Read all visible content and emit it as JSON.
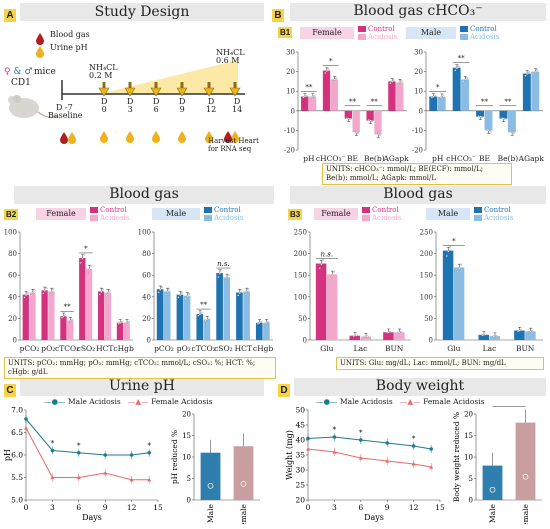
{
  "colors": {
    "female_control": "#d4317e",
    "female_acidosis": "#f3a7cc",
    "male_control": "#1f73b3",
    "male_acidosis": "#8bbde4",
    "ph_male": "#1f7a8c",
    "ph_female": "#e66a6a",
    "bar_male_small": "#2f7fae",
    "bar_female_small": "#c89ea0"
  },
  "panelA": {
    "letter": "A",
    "title": "Study Design",
    "legend_blood": "Blood gas",
    "legend_urine": "Urine pH",
    "sex_label": "& mice",
    "strain": "CD1",
    "d_minus7": "D -7",
    "baseline": "Baseline",
    "nh4cl_low": "NH₄CL\n0.2 M",
    "nh4cl_high": "NH₄CL\n0.6 M",
    "days": [
      "0",
      "3",
      "6",
      "9",
      "12",
      "14"
    ],
    "day_prefix": "D",
    "harvest": "Harvest Heart\nfor RNA seq"
  },
  "panelB": {
    "letter": "B",
    "title": "Blood gas cHCO₃⁻"
  },
  "labels": {
    "female": "Female",
    "male": "Male",
    "control": "Control",
    "acidosis": "Acidosis",
    "blood_gas": "Blood gas",
    "ns": "n.s."
  },
  "B1": {
    "letter": "B1",
    "units": "UNITS: cHCO₃⁻: mmol/L; BE(ECF): mmol/L;\nBe(b): mmol/L; AGapk: mmol/L",
    "chart_data": [
      {
        "type": "bar",
        "group": "Female",
        "categories": [
          "pH",
          "cHCO₃⁻",
          "BE",
          "Be(b)",
          "AGapk"
        ],
        "ylim": [
          -20,
          30
        ],
        "yticks": [
          -20,
          -10,
          0,
          10,
          20,
          30
        ],
        "series": [
          {
            "name": "Control",
            "values": [
              7.3,
              20.5,
              -4,
              -5,
              15
            ]
          },
          {
            "name": "Acidosis",
            "values": [
              7.2,
              16,
              -11,
              -12,
              14.5
            ]
          }
        ],
        "sig": [
          "**",
          "*",
          "**",
          "**",
          ""
        ]
      },
      {
        "type": "bar",
        "group": "Male",
        "categories": [
          "pH",
          "cHCO₃⁻",
          "BE",
          "Be(b)",
          "AGapk"
        ],
        "ylim": [
          -20,
          30
        ],
        "yticks": [
          -20,
          -10,
          0,
          10,
          20,
          30
        ],
        "series": [
          {
            "name": "Control",
            "values": [
              7.3,
              22,
              -3,
              -4,
              19
            ]
          },
          {
            "name": "Acidosis",
            "values": [
              7.1,
              16,
              -10,
              -11,
              20
            ]
          }
        ],
        "sig": [
          "*",
          "**",
          "**",
          "**",
          ""
        ]
      }
    ]
  },
  "B2": {
    "letter": "B2",
    "units": "UNITS: pCO₂: mmHg; pO₂: mmHg; cTCO₂: mmol/L; cSO₂: %; HCT: %; cHgb: g/dL",
    "chart_data": [
      {
        "type": "bar",
        "group": "Female",
        "categories": [
          "pCO₂",
          "pO₂",
          "cTCO₂",
          "cSO₂",
          "HCT",
          "cHgb"
        ],
        "ylim": [
          0,
          100
        ],
        "yticks": [
          0,
          20,
          40,
          60,
          80,
          100
        ],
        "series": [
          {
            "name": "Control",
            "values": [
              42,
              46,
              22,
              76,
              45,
              16
            ]
          },
          {
            "name": "Acidosis",
            "values": [
              44,
              45,
              18,
              66,
              44,
              16
            ]
          }
        ],
        "sig": [
          "",
          "",
          "**",
          "*",
          "",
          ""
        ]
      },
      {
        "type": "bar",
        "group": "Male",
        "categories": [
          "pCO₂",
          "pO₂",
          "cTCO₂",
          "cSO₂",
          "HCT",
          "cHgb"
        ],
        "ylim": [
          0,
          100
        ],
        "yticks": [
          0,
          20,
          40,
          60,
          80,
          100
        ],
        "series": [
          {
            "name": "Control",
            "values": [
              47,
              42,
              24,
              62,
              44,
              16
            ]
          },
          {
            "name": "Acidosis",
            "values": [
              45,
              41,
              19,
              58,
              45,
              16
            ]
          }
        ],
        "sig": [
          "",
          "",
          "**",
          "n.s.",
          "",
          ""
        ]
      }
    ]
  },
  "B3": {
    "letter": "B3",
    "units": "UNITS: Glu: mg/dL; Lac: mmol/L; BUN: mg/dL",
    "chart_data": [
      {
        "type": "bar",
        "group": "Female",
        "categories": [
          "Glu",
          "Lac",
          "BUN"
        ],
        "ylim": [
          0,
          250
        ],
        "yticks": [
          0,
          50,
          100,
          150,
          200,
          250
        ],
        "series": [
          {
            "name": "Control",
            "values": [
              177,
              10,
              18
            ]
          },
          {
            "name": "Acidosis",
            "values": [
              152,
              8,
              18
            ]
          }
        ],
        "sig": [
          "n.s.",
          "",
          ""
        ]
      },
      {
        "type": "bar",
        "group": "Male",
        "categories": [
          "Glu",
          "Lac",
          "BUN"
        ],
        "ylim": [
          0,
          250
        ],
        "yticks": [
          0,
          50,
          100,
          150,
          200,
          250
        ],
        "series": [
          {
            "name": "Control",
            "values": [
              207,
              12,
              22
            ]
          },
          {
            "name": "Acidosis",
            "values": [
              168,
              9,
              20
            ]
          }
        ],
        "sig": [
          "*",
          "",
          ""
        ]
      }
    ]
  },
  "C": {
    "letter": "C",
    "title": "Urine pH",
    "legend_male": "Male Acidosis",
    "legend_female": "Female Acidosis",
    "line_chart": {
      "type": "line",
      "x": [
        0,
        3,
        6,
        9,
        12,
        14
      ],
      "xlabel": "Days",
      "ylabel": "pH",
      "ylim": [
        5,
        7
      ],
      "yticks": [
        5.0,
        5.5,
        6.0,
        6.5,
        7.0
      ],
      "xticks": [
        0,
        3,
        6,
        9,
        12,
        15
      ],
      "series": [
        {
          "name": "Male Acidosis",
          "values": [
            6.8,
            6.1,
            6.05,
            6.0,
            6.0,
            6.05
          ]
        },
        {
          "name": "Female Acidosis",
          "values": [
            6.6,
            5.5,
            5.5,
            5.6,
            5.45,
            5.45
          ]
        }
      ],
      "sig": [
        "",
        "*",
        "*",
        "",
        "",
        "*"
      ]
    },
    "bar_chart": {
      "type": "bar",
      "categories": [
        "Male",
        "Female"
      ],
      "values": [
        11,
        12.5
      ],
      "ylabel": "pH reduced %",
      "ylim": [
        0,
        20
      ],
      "yticks": [
        0,
        5,
        10,
        15,
        20
      ]
    }
  },
  "D": {
    "letter": "D",
    "title": "Body weight",
    "legend_male": "Male Acidosis",
    "legend_female": "Female Acidosis",
    "line_chart": {
      "type": "line",
      "x": [
        0,
        3,
        6,
        9,
        12,
        14
      ],
      "xlabel": "Days",
      "ylabel": "Weight (mg)",
      "ylim": [
        20,
        50
      ],
      "yticks": [
        20,
        25,
        30,
        35,
        40,
        45,
        50
      ],
      "xticks": [
        0,
        3,
        6,
        9,
        12,
        15
      ],
      "series": [
        {
          "name": "Male Acidosis",
          "values": [
            40.5,
            41,
            40,
            39,
            38,
            37
          ]
        },
        {
          "name": "Female Acidosis",
          "values": [
            37,
            36,
            34,
            33,
            32,
            31
          ]
        }
      ],
      "sig": [
        "",
        "*",
        "*",
        "",
        "*",
        ""
      ]
    },
    "bar_chart": {
      "type": "bar",
      "categories": [
        "Male",
        "Female"
      ],
      "values": [
        8,
        18
      ],
      "ylabel": "Body weight reduced %",
      "ylim": [
        0,
        20
      ],
      "yticks": [
        0,
        5,
        10,
        15,
        20
      ],
      "sig": "*"
    }
  }
}
